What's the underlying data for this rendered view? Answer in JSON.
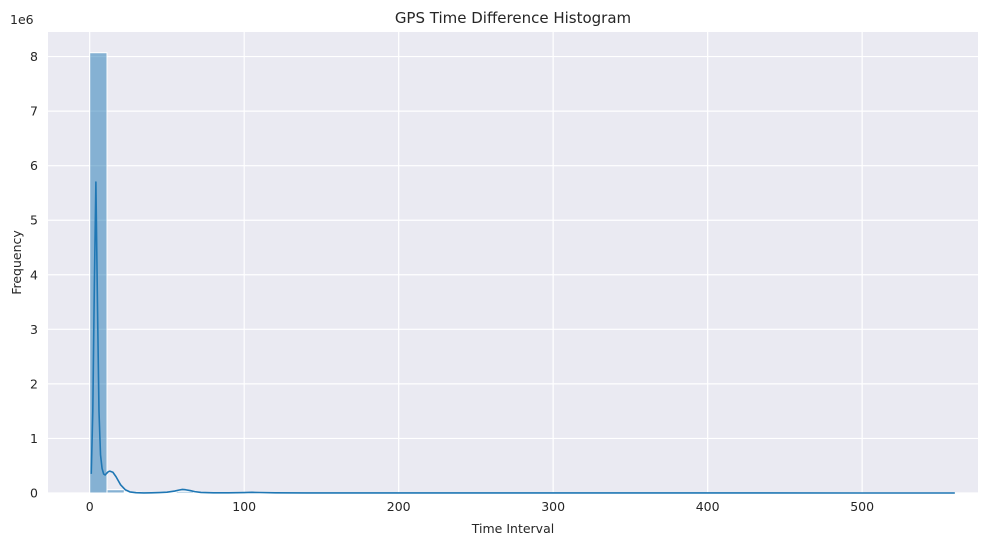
{
  "chart_data": {
    "type": "bar",
    "title": "GPS Time Difference Histogram",
    "xlabel": "Time Interval",
    "ylabel": "Frequency",
    "y_offset_label": "1e6",
    "xlim": [
      -27,
      575
    ],
    "ylim": [
      0,
      8.45
    ],
    "x_ticks": [
      0,
      100,
      200,
      300,
      400,
      500
    ],
    "y_ticks": [
      0,
      1,
      2,
      3,
      4,
      5,
      6,
      7,
      8
    ],
    "grid": true,
    "bars": {
      "bin_width": 11.2,
      "bin_start": 0,
      "color": "#1f77b4",
      "values": [
        8.07,
        0.06,
        0.015,
        0.008,
        0.012,
        0.03,
        0.008,
        0.004,
        0.006,
        0.006,
        0.004,
        0.003
      ]
    },
    "kde": {
      "name": "density",
      "color": "#1f77b4",
      "x": [
        1,
        2,
        3,
        4,
        5,
        6,
        7,
        8,
        9,
        10,
        11,
        12,
        13,
        15,
        17,
        20,
        23,
        26,
        30,
        35,
        40,
        45,
        50,
        55,
        58,
        60,
        62,
        65,
        68,
        72,
        80,
        90,
        100,
        105,
        110,
        120,
        140,
        200,
        300,
        400,
        500,
        560
      ],
      "y": [
        0.35,
        1.5,
        3.8,
        5.7,
        3.5,
        1.5,
        0.7,
        0.45,
        0.35,
        0.33,
        0.36,
        0.39,
        0.4,
        0.38,
        0.3,
        0.15,
        0.06,
        0.02,
        0.005,
        0.002,
        0.004,
        0.008,
        0.015,
        0.035,
        0.055,
        0.065,
        0.06,
        0.045,
        0.025,
        0.01,
        0.004,
        0.003,
        0.008,
        0.012,
        0.009,
        0.004,
        0.002,
        0.001,
        0.0005,
        0.0003,
        0.0002,
        0.0001
      ]
    }
  }
}
